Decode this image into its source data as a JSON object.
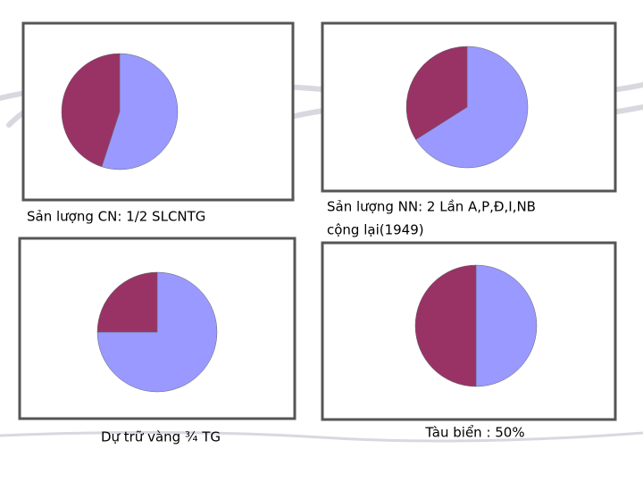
{
  "chart_data": [
    {
      "type": "pie",
      "values": [
        55,
        45
      ],
      "colors": [
        "#9999ff",
        "#993366"
      ],
      "caption": "Sản lượng CN: 1/2 SLCNTG"
    },
    {
      "type": "pie",
      "values": [
        66,
        34
      ],
      "colors": [
        "#9999ff",
        "#993366"
      ],
      "caption": [
        "Sản lượng NN: 2 Lần A,P,Đ,I,NB",
        "cộng lại(1949)"
      ]
    },
    {
      "type": "pie",
      "values": [
        75,
        25
      ],
      "colors": [
        "#9999ff",
        "#993366"
      ],
      "caption": "Dự trữ vàng ¾ TG"
    },
    {
      "type": "pie",
      "values": [
        50,
        50
      ],
      "colors": [
        "#9999ff",
        "#993366"
      ],
      "caption": "Tàu biển : 50%"
    }
  ]
}
